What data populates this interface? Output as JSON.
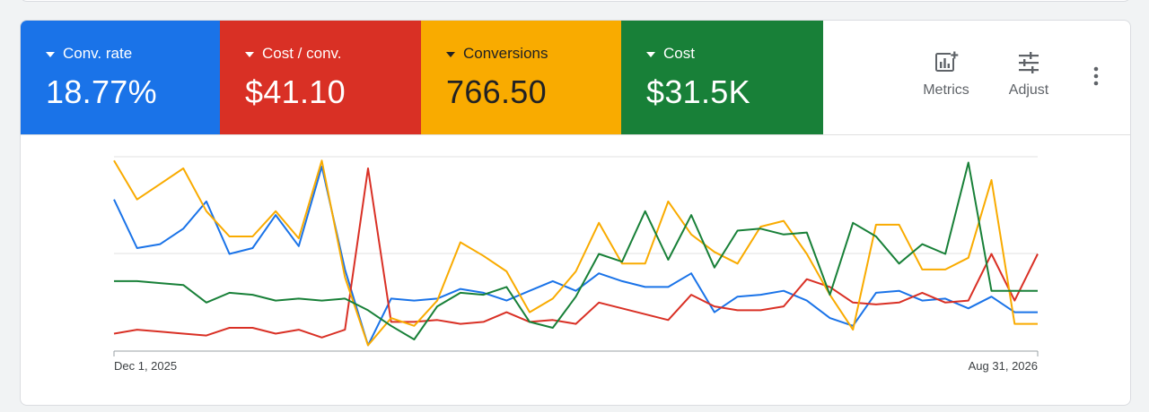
{
  "tiles": [
    {
      "label": "Conv. rate",
      "value": "18.77%",
      "color": "#1a73e8"
    },
    {
      "label": "Cost / conv.",
      "value": "$41.10",
      "color": "#d93025"
    },
    {
      "label": "Conversions",
      "value": "766.50",
      "color": "#f9ab00"
    },
    {
      "label": "Cost",
      "value": "$31.5K",
      "color": "#188038"
    }
  ],
  "toolbar": {
    "metrics_label": "Metrics",
    "adjust_label": "Adjust",
    "metrics_icon": "add-chart-icon",
    "adjust_icon": "tune-icon",
    "more_icon": "more-vert-icon"
  },
  "chart_data": {
    "type": "line",
    "x_start_label": "Dec 1, 2025",
    "x_end_label": "Aug 31, 2026",
    "grid": true,
    "point_count": 41,
    "series": [
      {
        "name": "Conv. rate",
        "color": "#1a73e8",
        "values": [
          0.78,
          0.53,
          0.55,
          0.63,
          0.77,
          0.5,
          0.53,
          0.7,
          0.54,
          0.95,
          0.42,
          0.03,
          0.27,
          0.26,
          0.27,
          0.32,
          0.3,
          0.26,
          0.31,
          0.36,
          0.31,
          0.4,
          0.36,
          0.33,
          0.33,
          0.4,
          0.2,
          0.28,
          0.29,
          0.31,
          0.26,
          0.17,
          0.13,
          0.3,
          0.31,
          0.26,
          0.27,
          0.22,
          0.28,
          0.2,
          0.2
        ]
      },
      {
        "name": "Cost / conv.",
        "color": "#d93025",
        "values": [
          0.09,
          0.11,
          0.1,
          0.09,
          0.08,
          0.12,
          0.12,
          0.09,
          0.11,
          0.07,
          0.11,
          0.94,
          0.15,
          0.15,
          0.16,
          0.14,
          0.15,
          0.2,
          0.15,
          0.16,
          0.14,
          0.25,
          0.22,
          0.19,
          0.16,
          0.29,
          0.23,
          0.21,
          0.21,
          0.23,
          0.37,
          0.33,
          0.25,
          0.24,
          0.25,
          0.3,
          0.25,
          0.26,
          0.5,
          0.26,
          0.5
        ]
      },
      {
        "name": "Conversions",
        "color": "#f9ab00",
        "values": [
          0.98,
          0.78,
          0.86,
          0.94,
          0.72,
          0.59,
          0.59,
          0.72,
          0.58,
          0.98,
          0.38,
          0.03,
          0.17,
          0.13,
          0.26,
          0.56,
          0.49,
          0.41,
          0.2,
          0.27,
          0.41,
          0.66,
          0.45,
          0.45,
          0.77,
          0.6,
          0.51,
          0.45,
          0.64,
          0.67,
          0.5,
          0.29,
          0.11,
          0.65,
          0.65,
          0.42,
          0.42,
          0.48,
          0.88,
          0.14,
          0.14
        ]
      },
      {
        "name": "Cost",
        "color": "#188038",
        "values": [
          0.36,
          0.36,
          0.35,
          0.34,
          0.25,
          0.3,
          0.29,
          0.26,
          0.27,
          0.26,
          0.27,
          0.21,
          0.13,
          0.06,
          0.23,
          0.3,
          0.29,
          0.33,
          0.15,
          0.12,
          0.28,
          0.5,
          0.46,
          0.72,
          0.47,
          0.7,
          0.43,
          0.62,
          0.63,
          0.6,
          0.61,
          0.29,
          0.66,
          0.59,
          0.45,
          0.55,
          0.5,
          0.97,
          0.31,
          0.31,
          0.31
        ]
      }
    ]
  }
}
